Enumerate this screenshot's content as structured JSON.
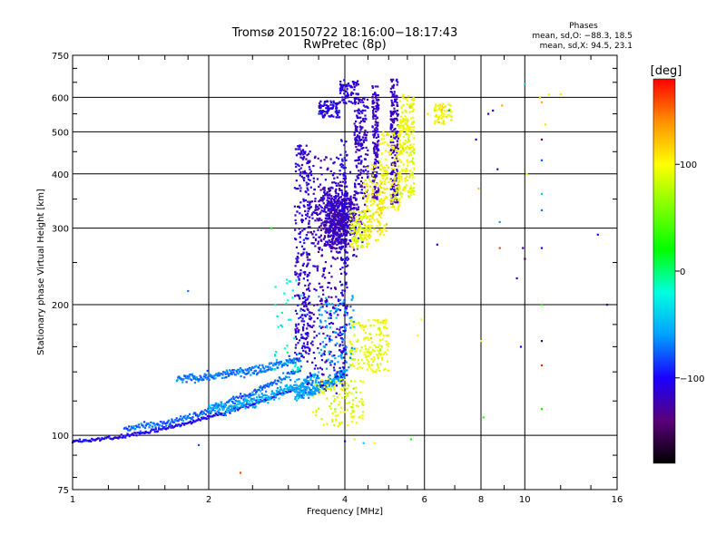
{
  "header": {
    "title": "Tromsø 20150722 18:16:00−18:17:43",
    "subtitle": "RwPretec (8p)"
  },
  "stats": {
    "heading": "Phases",
    "line_o": "mean, sd,O: −88.3, 18.5",
    "line_x": "mean, sd,X:  94.5, 23.1"
  },
  "colorbar": {
    "label": "[deg]",
    "ticks": [
      {
        "value": 100,
        "label": "100"
      },
      {
        "value": 0,
        "label": "0"
      },
      {
        "value": -100,
        "label": "−100"
      }
    ],
    "range": [
      -180,
      180
    ],
    "colors": {
      "stops": [
        "#000000",
        "#5a007a",
        "#1a00ff",
        "#00a0ff",
        "#00ffe0",
        "#00ff00",
        "#80ff00",
        "#ffff00",
        "#ff9000",
        "#ff0000"
      ]
    }
  },
  "chart_data": {
    "type": "scatter",
    "title": "Tromsø 20150722 18:16:00−18:17:43",
    "subtitle": "RwPretec (8p)",
    "xlabel": "Frequency [MHz]",
    "ylabel": "Stationary phase Virtual Height [km]",
    "x_scale": "log",
    "y_scale": "log",
    "xlim": [
      1,
      16
    ],
    "ylim": [
      75,
      750
    ],
    "grid": true,
    "x_ticks": [
      {
        "value": 1,
        "label": "1"
      },
      {
        "value": 2,
        "label": "2"
      },
      {
        "value": 4,
        "label": "4"
      },
      {
        "value": 6,
        "label": "6"
      },
      {
        "value": 8,
        "label": "8"
      },
      {
        "value": 10,
        "label": "10"
      },
      {
        "value": 16,
        "label": "16"
      }
    ],
    "y_ticks": [
      {
        "value": 75,
        "label": "75"
      },
      {
        "value": 100,
        "label": "100"
      },
      {
        "value": 200,
        "label": "200"
      },
      {
        "value": 300,
        "label": "300"
      },
      {
        "value": 400,
        "label": "400"
      },
      {
        "value": 500,
        "label": "500"
      },
      {
        "value": 600,
        "label": "600"
      },
      {
        "value": 750,
        "label": "750"
      }
    ],
    "color_by": "phase [deg]",
    "traces": [
      {
        "kind": "curve",
        "f0": 1.0,
        "f1": 3.1,
        "h0": 97,
        "h1": 128,
        "phase": -100,
        "jitter": 0.015
      },
      {
        "kind": "curve",
        "f0": 1.3,
        "f1": 3.2,
        "h0": 104,
        "h1": 142,
        "phase": -75,
        "jitter": 0.03
      },
      {
        "kind": "curve",
        "f0": 1.7,
        "f1": 3.2,
        "h0": 135,
        "h1": 150,
        "phase": -70,
        "jitter": 0.035
      },
      {
        "kind": "curve",
        "f0": 2.0,
        "f1": 3.5,
        "h0": 115,
        "h1": 138,
        "phase": -55,
        "jitter": 0.05
      },
      {
        "kind": "curve",
        "f0": 3.1,
        "f1": 4.0,
        "h0": 125,
        "h1": 140,
        "phase": -60,
        "jitter": 0.05
      },
      {
        "kind": "column",
        "f0": 3.1,
        "f1": 3.35,
        "h0": 150,
        "h1": 470,
        "phase": -110,
        "n": 280
      },
      {
        "kind": "column",
        "f0": 3.3,
        "f1": 3.9,
        "h0": 125,
        "h1": 440,
        "phase": -115,
        "n": 300
      },
      {
        "kind": "blob",
        "f0": 3.45,
        "f1": 4.35,
        "h0": 260,
        "h1": 380,
        "phase": -120,
        "n": 650
      },
      {
        "kind": "column",
        "f0": 3.9,
        "f1": 4.05,
        "h0": 130,
        "h1": 480,
        "phase": -105,
        "n": 160
      },
      {
        "kind": "column",
        "f0": 3.5,
        "f1": 3.9,
        "h0": 540,
        "h1": 590,
        "phase": -105,
        "n": 90
      },
      {
        "kind": "column",
        "f0": 3.9,
        "f1": 4.3,
        "h0": 580,
        "h1": 660,
        "phase": -110,
        "n": 80
      },
      {
        "kind": "column",
        "f0": 4.2,
        "f1": 4.5,
        "h0": 350,
        "h1": 600,
        "phase": -115,
        "n": 180
      },
      {
        "kind": "column",
        "f0": 4.6,
        "f1": 4.75,
        "h0": 350,
        "h1": 640,
        "phase": -120,
        "n": 170
      },
      {
        "kind": "column",
        "f0": 5.05,
        "f1": 5.25,
        "h0": 340,
        "h1": 660,
        "phase": -120,
        "n": 190
      },
      {
        "kind": "column",
        "f0": 4.1,
        "f1": 4.55,
        "h0": 270,
        "h1": 330,
        "phase": 90,
        "n": 120
      },
      {
        "kind": "column",
        "f0": 4.4,
        "f1": 4.95,
        "h0": 280,
        "h1": 420,
        "phase": 105,
        "n": 130
      },
      {
        "kind": "column",
        "f0": 4.75,
        "f1": 5.3,
        "h0": 330,
        "h1": 500,
        "phase": 100,
        "n": 150
      },
      {
        "kind": "column",
        "f0": 5.25,
        "f1": 5.7,
        "h0": 350,
        "h1": 530,
        "phase": 95,
        "n": 160
      },
      {
        "kind": "column",
        "f0": 5.3,
        "f1": 5.7,
        "h0": 500,
        "h1": 610,
        "phase": 100,
        "n": 70
      },
      {
        "kind": "column",
        "f0": 6.3,
        "f1": 6.9,
        "h0": 520,
        "h1": 580,
        "phase": 100,
        "n": 60
      },
      {
        "kind": "column",
        "f0": 3.4,
        "f1": 4.4,
        "h0": 105,
        "h1": 135,
        "phase": 90,
        "n": 120
      },
      {
        "kind": "column",
        "f0": 4.1,
        "f1": 5.0,
        "h0": 140,
        "h1": 185,
        "phase": 95,
        "n": 170
      },
      {
        "kind": "column",
        "f0": 3.5,
        "f1": 4.2,
        "h0": 140,
        "h1": 210,
        "phase": -60,
        "n": 90
      },
      {
        "kind": "column",
        "f0": 2.8,
        "f1": 3.2,
        "h0": 140,
        "h1": 230,
        "phase": -20,
        "n": 40
      }
    ],
    "sparse_points": [
      {
        "f": 1.8,
        "h": 215,
        "phase": -70
      },
      {
        "f": 1.9,
        "h": 95,
        "phase": -80
      },
      {
        "f": 2.35,
        "h": 82,
        "phase": 160
      },
      {
        "f": 2.75,
        "h": 300,
        "phase": 20
      },
      {
        "f": 4.0,
        "h": 97,
        "phase": -100
      },
      {
        "f": 4.2,
        "h": 98,
        "phase": 90
      },
      {
        "f": 4.4,
        "h": 96,
        "phase": -40
      },
      {
        "f": 4.65,
        "h": 96,
        "phase": 100
      },
      {
        "f": 5.6,
        "h": 98,
        "phase": 30
      },
      {
        "f": 5.8,
        "h": 170,
        "phase": 100
      },
      {
        "f": 5.9,
        "h": 185,
        "phase": 100
      },
      {
        "f": 6.1,
        "h": 550,
        "phase": 110
      },
      {
        "f": 6.4,
        "h": 275,
        "phase": -100
      },
      {
        "f": 6.6,
        "h": 525,
        "phase": 110
      },
      {
        "f": 6.8,
        "h": 560,
        "phase": -60
      },
      {
        "f": 7.8,
        "h": 480,
        "phase": -110
      },
      {
        "f": 7.9,
        "h": 370,
        "phase": 120
      },
      {
        "f": 8.0,
        "h": 165,
        "phase": 100
      },
      {
        "f": 8.1,
        "h": 110,
        "phase": 30
      },
      {
        "f": 8.3,
        "h": 550,
        "phase": -110
      },
      {
        "f": 8.5,
        "h": 560,
        "phase": -110
      },
      {
        "f": 8.7,
        "h": 410,
        "phase": -130
      },
      {
        "f": 8.8,
        "h": 310,
        "phase": -60
      },
      {
        "f": 8.8,
        "h": 270,
        "phase": 160
      },
      {
        "f": 8.9,
        "h": 575,
        "phase": 130
      },
      {
        "f": 9.6,
        "h": 230,
        "phase": -110
      },
      {
        "f": 9.8,
        "h": 160,
        "phase": -100
      },
      {
        "f": 9.9,
        "h": 270,
        "phase": -120
      },
      {
        "f": 10.0,
        "h": 645,
        "phase": -40
      },
      {
        "f": 10.0,
        "h": 255,
        "phase": -150
      },
      {
        "f": 10.1,
        "h": 400,
        "phase": 100
      },
      {
        "f": 10.8,
        "h": 600,
        "phase": 120
      },
      {
        "f": 10.9,
        "h": 585,
        "phase": 130
      },
      {
        "f": 10.9,
        "h": 480,
        "phase": -140
      },
      {
        "f": 10.9,
        "h": 430,
        "phase": -80
      },
      {
        "f": 10.9,
        "h": 360,
        "phase": -40
      },
      {
        "f": 10.9,
        "h": 330,
        "phase": -70
      },
      {
        "f": 10.9,
        "h": 270,
        "phase": -100
      },
      {
        "f": 10.9,
        "h": 200,
        "phase": 30
      },
      {
        "f": 10.9,
        "h": 165,
        "phase": -150
      },
      {
        "f": 10.9,
        "h": 145,
        "phase": 170
      },
      {
        "f": 10.9,
        "h": 115,
        "phase": 20
      },
      {
        "f": 11.1,
        "h": 520,
        "phase": 110
      },
      {
        "f": 11.3,
        "h": 610,
        "phase": 100
      },
      {
        "f": 12.0,
        "h": 610,
        "phase": 110
      },
      {
        "f": 14.5,
        "h": 290,
        "phase": -100
      },
      {
        "f": 15.2,
        "h": 200,
        "phase": -130
      }
    ]
  }
}
